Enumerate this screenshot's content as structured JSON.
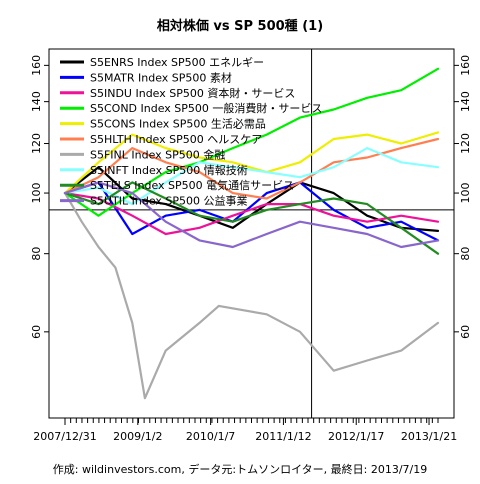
{
  "chart_data": {
    "type": "line",
    "title": "相対株価 vs SP 500種 (1)",
    "caption": "作成: wildinvestors.com, データ元:トムソンロイター, 最終日: 2013/7/19",
    "x_tick_labels": [
      "2007/12/31",
      "2009/1/2",
      "2010/1/7",
      "2011/1/12",
      "2012/1/17",
      "2013/1/21"
    ],
    "x_range": [
      "2007-12-31",
      "2013-07-19"
    ],
    "y_scale": "log",
    "ylim": [
      45,
      165
    ],
    "y_ticks": [
      60,
      80,
      100,
      120,
      140,
      160
    ],
    "reference_lines": {
      "horizontal_y": 94,
      "vertical_x": "2011-09-01"
    },
    "legend": {
      "position": "top-left",
      "entries": [
        {
          "label": "S5ENRS Index SP500 エネルギー",
          "color": "#000000"
        },
        {
          "label": "S5MATR Index SP500 素材",
          "color": "#0000ff"
        },
        {
          "label": "S5INDU Index SP500 資本財・サービス",
          "color": "#ee1199"
        },
        {
          "label": "S5COND Index SP500 一般消費財・サービス",
          "color": "#00ee00"
        },
        {
          "label": "S5CONS Index SP500 生活必需品",
          "color": "#eeee00"
        },
        {
          "label": "S5HLTH Index SP500 ヘルスケア",
          "color": "#ff7f50"
        },
        {
          "label": "S5FINL Index SP500 金融",
          "color": "#aaaaaa"
        },
        {
          "label": "S5INFT Index SP500 情報技術",
          "color": "#88ffff"
        },
        {
          "label": "S5TELS Index SP500 電気通信サービス",
          "color": "#228b22"
        },
        {
          "label": "S5UTIL Index SP500 公益事業",
          "color": "#8866cc"
        }
      ]
    },
    "series": [
      {
        "name": "S5ENRS Index SP500 エネルギー",
        "color": "#000000",
        "x": [
          "2007-12-31",
          "2008-06-30",
          "2008-12-31",
          "2009-06-30",
          "2009-12-31",
          "2010-06-30",
          "2010-12-31",
          "2011-06-30",
          "2011-12-30",
          "2012-06-29",
          "2012-12-31",
          "2013-07-19"
        ],
        "y": [
          100,
          110,
          98,
          96,
          92,
          88,
          96,
          104,
          100,
          92,
          88,
          87
        ]
      },
      {
        "name": "S5MATR Index SP500 素材",
        "color": "#0000ff",
        "x": [
          "2007-12-31",
          "2008-06-30",
          "2008-12-31",
          "2009-06-30",
          "2009-12-31",
          "2010-06-30",
          "2010-12-31",
          "2011-06-30",
          "2011-12-30",
          "2012-06-29",
          "2012-12-31",
          "2013-07-19"
        ],
        "y": [
          100,
          104,
          86,
          92,
          94,
          90,
          100,
          104,
          94,
          88,
          90,
          84
        ]
      },
      {
        "name": "S5INDU Index SP500 資本財・サービス",
        "color": "#ee1199",
        "x": [
          "2007-12-31",
          "2008-06-30",
          "2008-12-31",
          "2009-06-30",
          "2009-12-31",
          "2010-06-30",
          "2010-12-31",
          "2011-06-30",
          "2011-12-30",
          "2012-06-29",
          "2012-12-31",
          "2013-07-19"
        ],
        "y": [
          100,
          98,
          92,
          86,
          88,
          92,
          96,
          96,
          92,
          90,
          92,
          90
        ]
      },
      {
        "name": "S5COND Index SP500 一般消費財・サービス",
        "color": "#00ee00",
        "x": [
          "2007-12-31",
          "2008-06-30",
          "2008-12-31",
          "2009-06-30",
          "2009-12-31",
          "2010-06-30",
          "2010-12-31",
          "2011-06-30",
          "2011-12-30",
          "2012-06-29",
          "2012-12-31",
          "2013-07-19"
        ],
        "y": [
          100,
          92,
          100,
          108,
          112,
          118,
          124,
          132,
          136,
          142,
          146,
          158
        ]
      },
      {
        "name": "S5CONS Index SP500 生活必需品",
        "color": "#eeee00",
        "x": [
          "2007-12-31",
          "2008-06-30",
          "2008-12-31",
          "2009-06-30",
          "2009-12-31",
          "2010-06-30",
          "2010-12-31",
          "2011-06-30",
          "2011-12-30",
          "2012-06-29",
          "2012-12-31",
          "2013-07-19"
        ],
        "y": [
          100,
          112,
          124,
          118,
          114,
          112,
          108,
          112,
          122,
          124,
          120,
          125
        ]
      },
      {
        "name": "S5HLTH Index SP500 ヘルスケア",
        "color": "#ff7f50",
        "x": [
          "2007-12-31",
          "2008-06-30",
          "2008-12-31",
          "2009-06-30",
          "2009-12-31",
          "2010-06-30",
          "2010-12-31",
          "2011-06-30",
          "2011-12-30",
          "2012-06-29",
          "2012-12-31",
          "2013-07-19"
        ],
        "y": [
          100,
          106,
          118,
          112,
          108,
          100,
          98,
          104,
          112,
          114,
          118,
          122
        ]
      },
      {
        "name": "S5FINL Index SP500 金融",
        "color": "#aaaaaa",
        "x": [
          "2007-12-31",
          "2008-03-31",
          "2008-06-30",
          "2008-09-30",
          "2008-12-31",
          "2009-03-09",
          "2009-06-30",
          "2009-12-31",
          "2010-04-15",
          "2010-12-31",
          "2011-06-30",
          "2011-12-30",
          "2012-06-29",
          "2012-12-31",
          "2013-07-19"
        ],
        "y": [
          100,
          90,
          82,
          76,
          62,
          47,
          56,
          62,
          66,
          64,
          60,
          52,
          54,
          56,
          62
        ]
      },
      {
        "name": "S5INFT Index SP500 情報技術",
        "color": "#88ffff",
        "x": [
          "2007-12-31",
          "2008-06-30",
          "2008-12-31",
          "2009-06-30",
          "2009-12-31",
          "2010-06-30",
          "2010-12-31",
          "2011-06-30",
          "2011-12-30",
          "2012-06-29",
          "2012-12-31",
          "2013-07-19"
        ],
        "y": [
          100,
          102,
          96,
          104,
          112,
          110,
          108,
          106,
          110,
          118,
          112,
          110
        ]
      },
      {
        "name": "S5TELS Index SP500 電気通信サービス",
        "color": "#228b22",
        "x": [
          "2007-12-31",
          "2008-06-30",
          "2008-12-31",
          "2009-06-30",
          "2009-12-31",
          "2010-06-30",
          "2010-12-31",
          "2011-06-30",
          "2011-12-30",
          "2012-06-29",
          "2012-12-31",
          "2013-07-19"
        ],
        "y": [
          100,
          96,
          104,
          98,
          92,
          90,
          94,
          96,
          98,
          96,
          88,
          80
        ]
      },
      {
        "name": "S5UTIL Index SP500 公益事業",
        "color": "#8866cc",
        "x": [
          "2007-12-31",
          "2008-06-30",
          "2008-12-31",
          "2009-06-30",
          "2009-12-31",
          "2010-06-30",
          "2010-12-31",
          "2011-06-30",
          "2011-12-30",
          "2012-06-29",
          "2012-12-31",
          "2013-07-19"
        ],
        "y": [
          100,
          104,
          100,
          90,
          84,
          82,
          86,
          90,
          88,
          86,
          82,
          84
        ]
      }
    ]
  }
}
